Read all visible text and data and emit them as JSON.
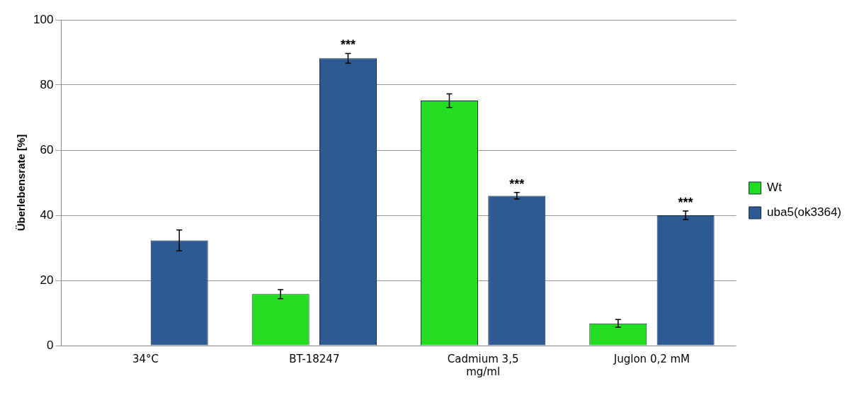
{
  "chart_data": {
    "type": "bar",
    "ylabel": "Überlebensrate [%]",
    "categories": [
      "34°C",
      "BT-18247",
      "Cadmium 3,5 mg/ml",
      "Juglon 0,2 mM"
    ],
    "series": [
      {
        "name": "Wt",
        "color": "#22dd22",
        "values": [
          null,
          15.8,
          75.2,
          6.8
        ],
        "errors": [
          null,
          1.4,
          2.1,
          1.2
        ]
      },
      {
        "name": "uba5(ok3364)",
        "color": "#2e5a94",
        "values": [
          32.3,
          88.2,
          46,
          40
        ],
        "errors": [
          3.2,
          1.5,
          1,
          1.3
        ]
      }
    ],
    "ylim": [
      0,
      100
    ],
    "yticks": [
      0,
      20,
      40,
      60,
      80,
      100
    ],
    "grid": "y",
    "legend": "right",
    "annotations": [
      "***",
      "***",
      "***"
    ]
  }
}
